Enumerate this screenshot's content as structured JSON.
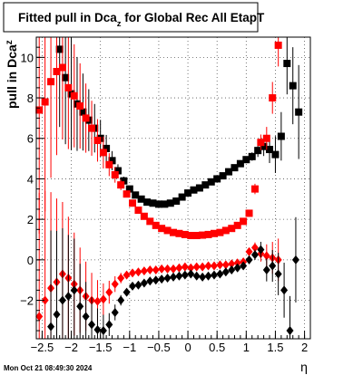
{
  "title": "Fitted pull in Dca",
  "title_sub": "z",
  "title_rest": " for Global Rec All EtapT",
  "xlabel": "η",
  "ylabel": "pull in Dca",
  "ylabel_sub": "z",
  "timestamp": "Mon Oct 21 08:49:30 2024",
  "colors": {
    "black": "#000000",
    "red": "#ff0000",
    "grid": "#555555"
  },
  "chart_data": {
    "type": "scatter",
    "xlim": [
      -2.6,
      2.1
    ],
    "ylim": [
      -3.9,
      11.0
    ],
    "grid": true,
    "xticks": [
      -2.5,
      -2,
      -1.5,
      -1,
      -0.5,
      0,
      0.5,
      1,
      1.5,
      2
    ],
    "xtick_labels": [
      "−2.5",
      "−2",
      "−1.5",
      "−1",
      "−0.5",
      "0",
      "0.5",
      "1",
      "1.5",
      "2"
    ],
    "yticks": [
      -2,
      0,
      2,
      4,
      6,
      8,
      10
    ],
    "ytick_labels": [
      "−2",
      "0",
      "2",
      "4",
      "6",
      "8",
      "10"
    ],
    "series": [
      {
        "color": "black",
        "marker": "square",
        "x": [
          -2.2,
          -2.1,
          -2.0,
          -1.9,
          -1.8,
          -1.7,
          -1.6,
          -1.5,
          -1.4,
          -1.3,
          -1.2,
          -1.1,
          -1.0,
          -0.9,
          -0.8,
          -0.7,
          -0.6,
          -0.5,
          -0.4,
          -0.3,
          -0.2,
          -0.1,
          0.0,
          0.1,
          0.2,
          0.3,
          0.4,
          0.5,
          0.6,
          0.7,
          0.8,
          0.9,
          1.0,
          1.1,
          1.2,
          1.3,
          1.4,
          1.5,
          1.6,
          1.7,
          1.8,
          1.9
        ],
        "y": [
          10.4,
          9.0,
          8.2,
          7.7,
          7.3,
          6.9,
          6.5,
          6.0,
          5.5,
          4.9,
          4.4,
          3.9,
          3.5,
          3.2,
          3.0,
          2.85,
          2.8,
          2.75,
          2.75,
          2.8,
          2.9,
          3.1,
          3.3,
          3.45,
          3.55,
          3.7,
          3.85,
          4.0,
          4.15,
          4.35,
          4.55,
          4.75,
          4.95,
          5.1,
          5.4,
          5.6,
          5.45,
          5.2,
          6.1,
          9.7,
          8.6,
          7.3
        ]
      },
      {
        "color": "red",
        "marker": "square",
        "x": [
          -2.55,
          -2.45,
          -2.35,
          -2.25,
          -2.15,
          -2.05,
          -1.95,
          -1.85,
          -1.75,
          -1.65,
          -1.55,
          -1.45,
          -1.35,
          -1.25,
          -1.15,
          -1.05,
          -0.95,
          -0.85,
          -0.75,
          -0.65,
          -0.55,
          -0.45,
          -0.35,
          -0.25,
          -0.15,
          -0.05,
          0.05,
          0.15,
          0.25,
          0.35,
          0.45,
          0.55,
          0.65,
          0.75,
          0.85,
          0.95,
          1.05,
          1.15,
          1.25,
          1.35,
          1.45,
          1.55
        ],
        "y": [
          7.4,
          7.8,
          8.8,
          9.3,
          9.5,
          8.5,
          8.1,
          7.6,
          7.0,
          6.5,
          5.9,
          5.3,
          4.7,
          4.2,
          3.7,
          3.25,
          2.8,
          2.45,
          2.15,
          1.9,
          1.7,
          1.55,
          1.45,
          1.35,
          1.3,
          1.25,
          1.2,
          1.2,
          1.22,
          1.25,
          1.3,
          1.35,
          1.45,
          1.55,
          1.7,
          1.9,
          2.3,
          3.5,
          5.8,
          6.0,
          8.0,
          10.6
        ]
      },
      {
        "color": "red",
        "marker": "diamond",
        "x": [
          -2.55,
          -2.45,
          -2.35,
          -2.25,
          -2.15,
          -2.05,
          -1.95,
          -1.85,
          -1.75,
          -1.65,
          -1.55,
          -1.45,
          -1.35,
          -1.25,
          -1.15,
          -1.05,
          -0.95,
          -0.85,
          -0.75,
          -0.65,
          -0.55,
          -0.45,
          -0.35,
          -0.25,
          -0.15,
          -0.05,
          0.05,
          0.15,
          0.25,
          0.35,
          0.45,
          0.55,
          0.65,
          0.75,
          0.85,
          0.95,
          1.05,
          1.15,
          1.25,
          1.35,
          1.45,
          1.55
        ],
        "y": [
          -2.8,
          -2.0,
          -1.4,
          -1.1,
          -0.7,
          -0.9,
          -1.2,
          -1.5,
          -1.8,
          -2.0,
          -2.05,
          -1.95,
          -1.6,
          -1.2,
          -0.9,
          -0.75,
          -0.65,
          -0.6,
          -0.55,
          -0.5,
          -0.5,
          -0.45,
          -0.45,
          -0.45,
          -0.4,
          -0.35,
          -0.4,
          -0.35,
          -0.35,
          -0.3,
          -0.3,
          -0.25,
          -0.25,
          -0.2,
          -0.15,
          -0.1,
          0.4,
          0.6,
          0.3,
          0.2,
          0.1,
          0.0
        ]
      },
      {
        "color": "black",
        "marker": "diamond",
        "x": [
          -2.35,
          -2.25,
          -2.15,
          -2.05,
          -1.95,
          -1.85,
          -1.75,
          -1.65,
          -1.55,
          -1.45,
          -1.35,
          -1.25,
          -1.15,
          -1.05,
          -0.95,
          -0.85,
          -0.75,
          -0.65,
          -0.55,
          -0.45,
          -0.35,
          -0.25,
          -0.15,
          -0.05,
          0.05,
          0.15,
          0.25,
          0.35,
          0.45,
          0.55,
          0.65,
          0.75,
          0.85,
          0.95,
          1.05,
          1.15,
          1.25,
          1.35,
          1.45,
          1.55,
          1.65,
          1.75,
          1.85
        ],
        "y": [
          -3.3,
          -2.7,
          -2.0,
          -1.8,
          -1.5,
          -2.3,
          -2.8,
          -3.2,
          -3.45,
          -3.5,
          -3.2,
          -2.6,
          -2.0,
          -1.6,
          -1.3,
          -1.25,
          -1.15,
          -1.05,
          -1.0,
          -0.95,
          -0.9,
          -0.85,
          -0.8,
          -0.75,
          -0.7,
          -0.8,
          -0.85,
          -0.8,
          -0.75,
          -0.7,
          -0.6,
          -0.5,
          -0.4,
          -0.3,
          0.0,
          0.25,
          0.5,
          -0.5,
          -0.3,
          -0.7,
          -1.5,
          -3.5,
          0.0
        ]
      }
    ]
  }
}
